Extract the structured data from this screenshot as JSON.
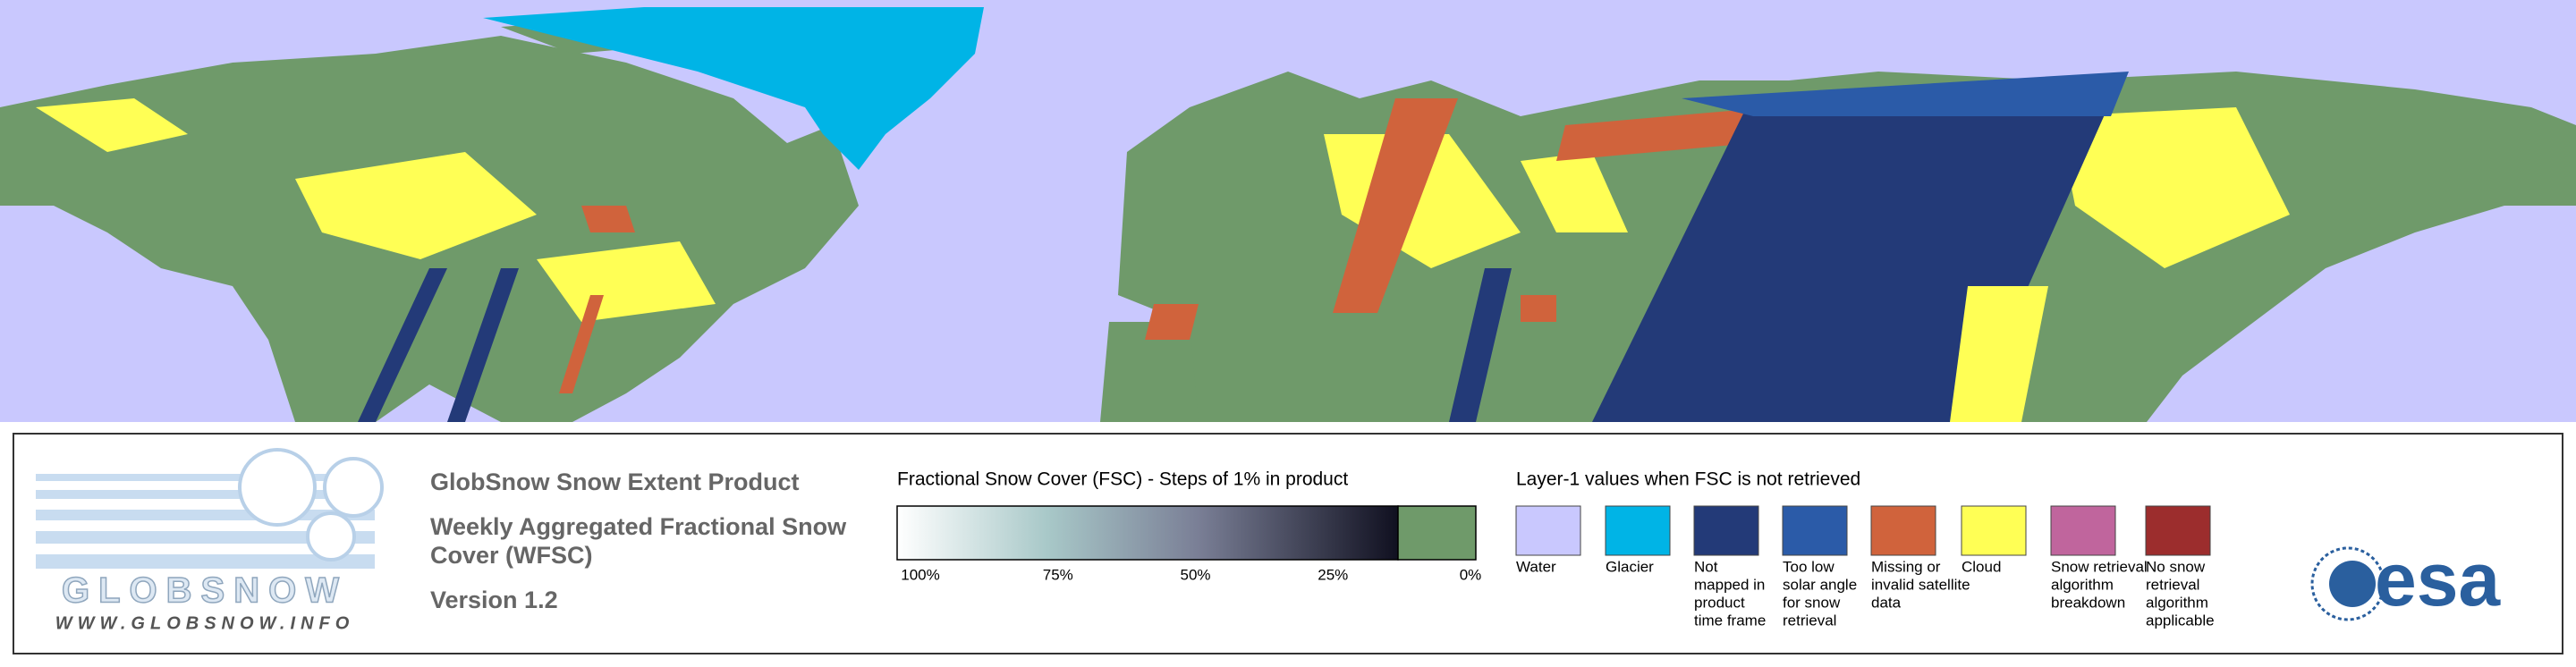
{
  "logo": {
    "name": "GLOBSNOW",
    "url": "WWW.GLOBSNOW.INFO"
  },
  "product": {
    "title": "GlobSnow Snow Extent Product",
    "subtitle_lines": [
      "Weekly Aggregated Fractional Snow",
      "Cover (WFSC)"
    ],
    "version": "Version 1.2"
  },
  "colorbar": {
    "title": "Fractional Snow Cover (FSC) - Steps of 1% in product",
    "ticks": [
      "100%",
      "75%",
      "50%",
      "25%",
      "0%"
    ]
  },
  "layer_legend": {
    "title": "Layer-1 values when FSC is not retrieved",
    "items": [
      {
        "label_lines": [
          "Water"
        ],
        "color": "#c9c8fe"
      },
      {
        "label_lines": [
          "Glacier"
        ],
        "color": "#00b4e6"
      },
      {
        "label_lines": [
          "Not",
          "mapped in",
          "product",
          "time frame"
        ],
        "color": "#233a78"
      },
      {
        "label_lines": [
          "Too low",
          "solar angle",
          "for snow",
          "retrieval"
        ],
        "color": "#2b5ba8"
      },
      {
        "label_lines": [
          "Missing or",
          "invalid satellite",
          "data"
        ],
        "color": "#d0633c"
      },
      {
        "label_lines": [
          "Cloud"
        ],
        "color": "#ffff55"
      },
      {
        "label_lines": [
          "Snow retrieval",
          "algorithm",
          "breakdown"
        ],
        "color": "#c0659d"
      },
      {
        "label_lines": [
          "No snow",
          "retrieval",
          "algorithm",
          "applicable"
        ],
        "color": "#9c2d2d"
      }
    ]
  },
  "partner_logo": "esa"
}
